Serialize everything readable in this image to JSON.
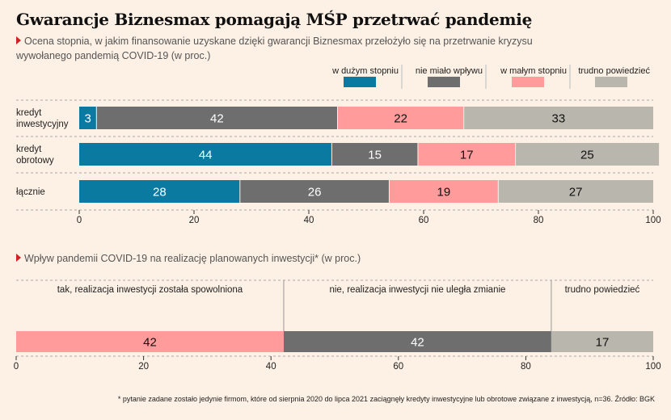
{
  "title": "Gwarancje Biznesmax pomagają MŚP przetrwać pandemię",
  "subtitle": "Ocena stopnia, w jakim finansowanie uzyskane dzięki gwarancji Biznesmax przełożyło się na przetrwanie kryzysu wywołanego pandemią COVID-19 (w proc.)",
  "chart_data": [
    {
      "type": "bar",
      "orientation": "horizontal",
      "stacked": true,
      "categories": [
        "kredyt inwestycyjny",
        "kredyt obrotowy",
        "łącznie"
      ],
      "category_lines": [
        [
          "kredyt",
          "inwestycyjny"
        ],
        [
          "kredyt",
          "obrotowy"
        ],
        [
          "łącznie"
        ]
      ],
      "series": [
        {
          "name": "w dużym stopniu",
          "color": "#0b7aa1",
          "values": [
            3,
            44,
            28
          ]
        },
        {
          "name": "nie miało wpływu",
          "color": "#6e6e6e",
          "values": [
            42,
            15,
            26
          ]
        },
        {
          "name": "w małym stopniu",
          "color": "#ff9b9b",
          "values": [
            22,
            17,
            19
          ]
        },
        {
          "name": "trudno powiedzieć",
          "color": "#b8b6ad",
          "values": [
            33,
            25,
            27
          ]
        }
      ],
      "xlim": [
        0,
        100
      ],
      "xticks": [
        0,
        20,
        40,
        60,
        80,
        100
      ],
      "legend": "top-right",
      "grid": false
    },
    {
      "type": "bar",
      "orientation": "horizontal",
      "stacked": true,
      "title": "Wpływ pandemii COVID-19 na realizację planowanych inwestycji* (w proc.)",
      "segments": [
        {
          "label": "tak, realizacja inwestycji została spowolniona",
          "value": 42,
          "color": "#ff9b9b"
        },
        {
          "label": "nie, realizacja inwestycji nie uległa zmianie",
          "value": 42,
          "color": "#6e6e6e"
        },
        {
          "label": "trudno powiedzieć",
          "value": 17,
          "color": "#b8b6ad"
        }
      ],
      "xlim": [
        0,
        100
      ],
      "xticks": [
        0,
        20,
        40,
        60,
        80,
        100
      ]
    }
  ],
  "footnote": "* pytanie zadane zostało jedynie firmom, które od sierpnia 2020 do lipca 2021 zaciągnęły kredyty inwestycyjne lub obrotowe związane z inwestycją, n=36. Źródło: BGK"
}
